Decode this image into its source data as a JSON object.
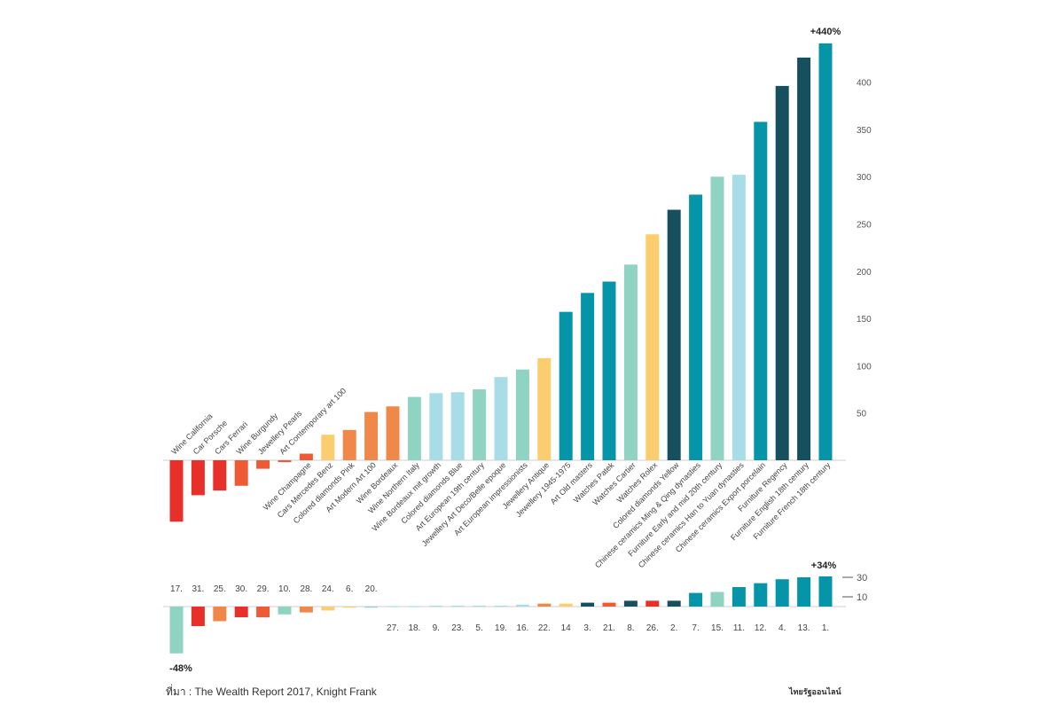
{
  "source": "ที่มา : The Wealth Report 2017, Knight Frank",
  "logo": "ไทยรัฐออนไลน์",
  "palette": {
    "red": "#e8302a",
    "orange_red": "#ee5a36",
    "orange": "#f0884a",
    "yellow": "#fbcd6e",
    "mint": "#8fd3c2",
    "light_blue": "#a8dce6",
    "teal": "#0495a8",
    "dark_teal": "#164f5e"
  },
  "chart_data": [
    {
      "type": "bar",
      "annotations": {
        "top": "+440%"
      },
      "ylim": [
        -65,
        440
      ],
      "yticks": [
        50,
        100,
        150,
        200,
        250,
        300,
        350,
        400
      ],
      "categories": [
        "Wine California",
        "Car Porsche",
        "Cars Ferrari",
        "Wine Burgundy",
        "Jewellery Pearls",
        "Art Contemporary art 100",
        "Wine Champagne",
        "Cars Mercedes Benz",
        "Colored diamonds Pink",
        "Art Modern Art 100",
        "Wine Bordeaux",
        "Wine Northern Italy",
        "Wine Bordeaux mit growth",
        "Colored diamonds Blue",
        "Art European 19th century",
        "Jewellery Art Deco/Belle epoque",
        "Art European impressionists",
        "Jewellery Antique",
        "Jewellery 1945-1975",
        "Art Old masters",
        "Watches Patek",
        "Watches Cartier",
        "Watches Rolex",
        "Colored diamonds Yellow",
        "Chinese ceramics Ming & Qing dynasties",
        "Furniture Early and mid 20th century",
        "Chinese ceramics Han to Yuan dynasties",
        "Chinese ceramics Export porcelain",
        "Furniture Regency",
        "Furniture English 18th century",
        "Furniture French 18th century"
      ],
      "values": [
        -65,
        -37,
        -32,
        -27,
        -9,
        -2,
        7,
        27,
        32,
        51,
        57,
        67,
        71,
        72,
        75,
        88,
        96,
        108,
        157,
        177,
        189,
        207,
        239,
        265,
        281,
        300,
        302,
        358,
        396,
        426,
        441
      ],
      "colors": [
        "#e8302a",
        "#e8302a",
        "#e8302a",
        "#ee5a36",
        "#ee5a36",
        "#ee5a36",
        "#ee5a36",
        "#fbcd6e",
        "#f0884a",
        "#f0884a",
        "#f0884a",
        "#8fd3c2",
        "#a8dce6",
        "#a8dce6",
        "#8fd3c2",
        "#a8dce6",
        "#8fd3c2",
        "#fbcd6e",
        "#0495a8",
        "#0495a8",
        "#0495a8",
        "#8fd3c2",
        "#fbcd6e",
        "#164f5e",
        "#0495a8",
        "#8fd3c2",
        "#a8dce6",
        "#0495a8",
        "#164f5e",
        "#164f5e",
        "#0495a8"
      ]
    },
    {
      "type": "bar",
      "annotations": {
        "top": "+34%",
        "bottom": "-48%"
      },
      "ylim": [
        -48,
        34
      ],
      "yticks": [
        10,
        30
      ],
      "ranks": [
        "17.",
        "31.",
        "25.",
        "30.",
        "29.",
        "10.",
        "28.",
        "24.",
        "6.",
        "20.",
        "27.",
        "18.",
        "9.",
        "23.",
        "5.",
        "19.",
        "16.",
        "22.",
        "14",
        "3.",
        "21.",
        "8.",
        "26.",
        "2.",
        "7.",
        "15.",
        "11.",
        "12.",
        "4.",
        "13.",
        "1."
      ],
      "values": [
        -48,
        -20,
        -15,
        -11,
        -11,
        -8,
        -6,
        -4,
        -1,
        -1,
        0.5,
        0.5,
        1,
        1,
        1,
        1,
        2,
        3,
        3,
        4,
        4,
        6,
        6,
        6,
        14,
        15,
        20,
        24,
        28,
        30,
        31
      ],
      "colors": [
        "#8fd3c2",
        "#e8302a",
        "#f0884a",
        "#e8302a",
        "#ee5a36",
        "#8fd3c2",
        "#f0884a",
        "#fbcd6e",
        "#fbcd6e",
        "#8fd3c2",
        "#a8dce6",
        "#a8dce6",
        "#a8dce6",
        "#a8dce6",
        "#a8dce6",
        "#a8dce6",
        "#a8dce6",
        "#f0884a",
        "#fbcd6e",
        "#164f5e",
        "#ee5a36",
        "#164f5e",
        "#e8302a",
        "#164f5e",
        "#0495a8",
        "#8fd3c2",
        "#0495a8",
        "#0495a8",
        "#0495a8",
        "#0495a8",
        "#0495a8"
      ]
    }
  ]
}
